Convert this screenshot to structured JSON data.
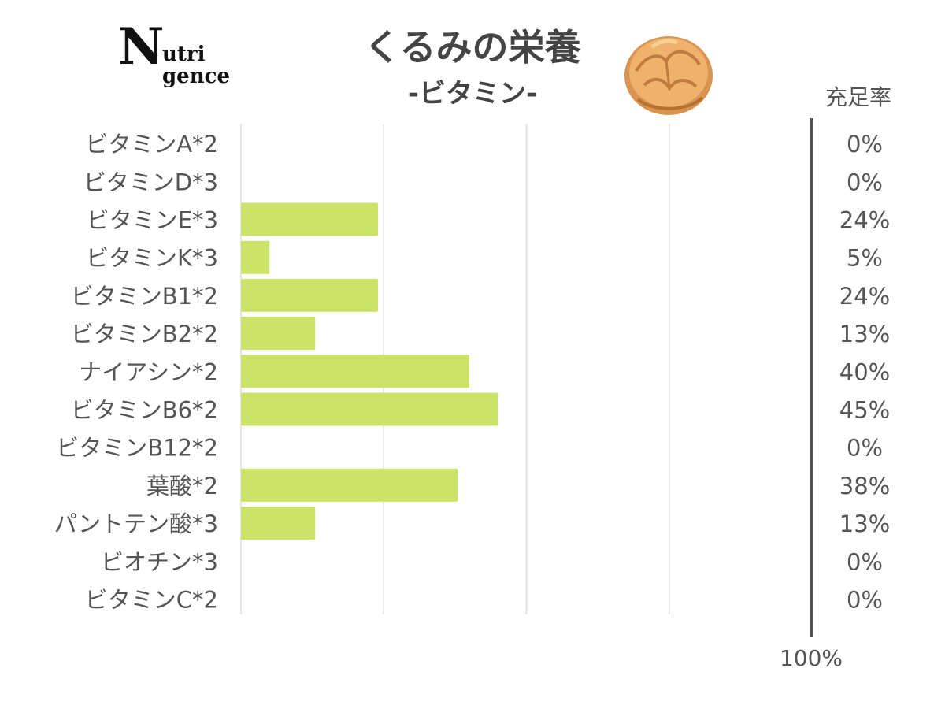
{
  "logo": {
    "big": "N",
    "line1": "utri",
    "line2": "gence"
  },
  "title": "くるみの栄養",
  "subtitle": "-ビタミン-",
  "walnut_icon": "walnut-icon",
  "rate_header": "充足率",
  "footer_max": "100%",
  "colors": {
    "bar": "#cce36a",
    "grid": "#dddddd",
    "text": "#555555",
    "axis": "#555555"
  },
  "chart_data": {
    "type": "bar",
    "orientation": "horizontal",
    "title": "くるみの栄養",
    "subtitle": "-ビタミン-",
    "categories": [
      "ビタミンA*2",
      "ビタミンD*3",
      "ビタミンE*3",
      "ビタミンK*3",
      "ビタミンB1*2",
      "ビタミンB2*2",
      "ナイアシン*2",
      "ビタミンB6*2",
      "ビタミンB12*2",
      "葉酸*2",
      "パントテン酸*3",
      "ビオチン*3",
      "ビタミンC*2"
    ],
    "values": [
      0,
      0,
      24,
      5,
      24,
      13,
      40,
      45,
      0,
      38,
      13,
      0,
      0
    ],
    "value_labels": [
      "0%",
      "0%",
      "24%",
      "5%",
      "24%",
      "13%",
      "40%",
      "45%",
      "0%",
      "38%",
      "13%",
      "0%",
      "0%"
    ],
    "xlim": [
      0,
      100
    ],
    "grid": true,
    "reference_line": 100,
    "reference_label": "100%"
  }
}
